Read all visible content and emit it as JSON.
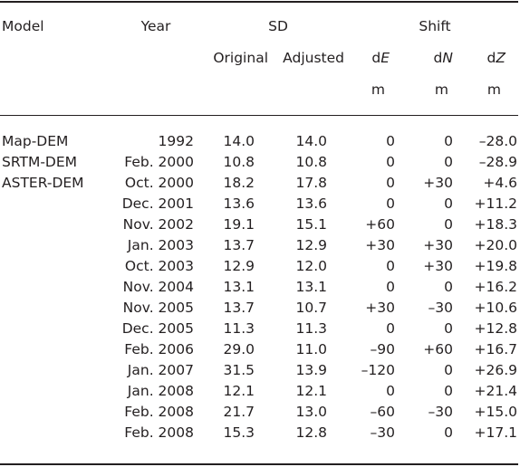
{
  "headers": {
    "model": "Model",
    "year": "Year",
    "sd": "SD",
    "shift": "Shift",
    "original": "Original",
    "adjusted": "Adjusted",
    "de_prefix": "d",
    "de_var": "E",
    "dn_prefix": "d",
    "dn_var": "N",
    "dz_prefix": "d",
    "dz_var": "Z",
    "unit_de": "m",
    "unit_dn": "m",
    "unit_dz": "m"
  },
  "rows": [
    {
      "model": "Map-DEM",
      "year": "1992",
      "original": "14.0",
      "adjusted": "14.0",
      "de": "0",
      "dn": "0",
      "dz": "–28.0"
    },
    {
      "model": "SRTM-DEM",
      "year": "Feb. 2000",
      "original": "10.8",
      "adjusted": "10.8",
      "de": "0",
      "dn": "0",
      "dz": "–28.9"
    },
    {
      "model": "ASTER-DEM",
      "year": "Oct. 2000",
      "original": "18.2",
      "adjusted": "17.8",
      "de": "0",
      "dn": "+30",
      "dz": "+4.6"
    },
    {
      "model": "",
      "year": "Dec. 2001",
      "original": "13.6",
      "adjusted": "13.6",
      "de": "0",
      "dn": "0",
      "dz": "+11.2"
    },
    {
      "model": "",
      "year": "Nov. 2002",
      "original": "19.1",
      "adjusted": "15.1",
      "de": "+60",
      "dn": "0",
      "dz": "+18.3"
    },
    {
      "model": "",
      "year": "Jan. 2003",
      "original": "13.7",
      "adjusted": "12.9",
      "de": "+30",
      "dn": "+30",
      "dz": "+20.0"
    },
    {
      "model": "",
      "year": "Oct. 2003",
      "original": "12.9",
      "adjusted": "12.0",
      "de": "0",
      "dn": "+30",
      "dz": "+19.8"
    },
    {
      "model": "",
      "year": "Nov. 2004",
      "original": "13.1",
      "adjusted": "13.1",
      "de": "0",
      "dn": "0",
      "dz": "+16.2"
    },
    {
      "model": "",
      "year": "Nov. 2005",
      "original": "13.7",
      "adjusted": "10.7",
      "de": "+30",
      "dn": "–30",
      "dz": "+10.6"
    },
    {
      "model": "",
      "year": "Dec. 2005",
      "original": "11.3",
      "adjusted": "11.3",
      "de": "0",
      "dn": "0",
      "dz": "+12.8"
    },
    {
      "model": "",
      "year": "Feb. 2006",
      "original": "29.0",
      "adjusted": "11.0",
      "de": "–90",
      "dn": "+60",
      "dz": "+16.7"
    },
    {
      "model": "",
      "year": "Jan. 2007",
      "original": "31.5",
      "adjusted": "13.9",
      "de": "–120",
      "dn": "0",
      "dz": "+26.9"
    },
    {
      "model": "",
      "year": "Jan. 2008",
      "original": "12.1",
      "adjusted": "12.1",
      "de": "0",
      "dn": "0",
      "dz": "+21.4"
    },
    {
      "model": "",
      "year": "Feb. 2008",
      "original": "21.7",
      "adjusted": "13.0",
      "de": "–60",
      "dn": "–30",
      "dz": "+15.0"
    },
    {
      "model": "",
      "year": "Feb. 2008",
      "original": "15.3",
      "adjusted": "12.8",
      "de": "–30",
      "dn": "0",
      "dz": "+17.1"
    }
  ]
}
